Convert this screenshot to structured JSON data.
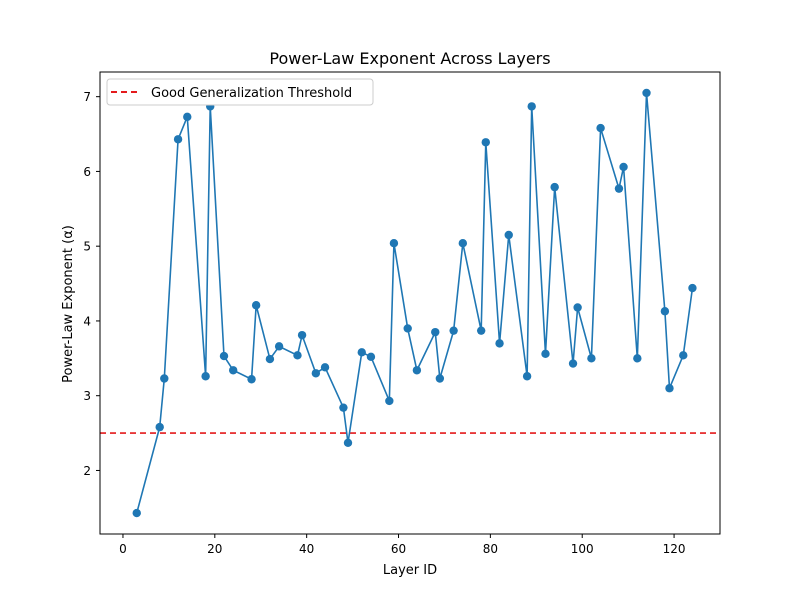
{
  "chart_data": {
    "type": "line",
    "title": "Power-Law Exponent Across Layers",
    "xlabel": "Layer ID",
    "ylabel": "Power-Law Exponent (α)",
    "xlim": [
      -5,
      130
    ],
    "ylim": [
      1.15,
      7.33
    ],
    "xticks": [
      0,
      20,
      40,
      60,
      80,
      100,
      120
    ],
    "yticks": [
      2,
      3,
      4,
      5,
      6,
      7
    ],
    "grid": false,
    "legend": {
      "placement": "top-left",
      "entries": [
        "Good Generalization Threshold"
      ]
    },
    "series": [
      {
        "color": "#1f77b4",
        "marker": "circle",
        "points": [
          [
            3,
            1.43
          ],
          [
            8,
            2.58
          ],
          [
            9,
            3.23
          ],
          [
            12,
            6.43
          ],
          [
            14,
            6.73
          ],
          [
            18,
            3.26
          ],
          [
            19,
            6.87
          ],
          [
            22,
            3.53
          ],
          [
            24,
            3.34
          ],
          [
            28,
            3.22
          ],
          [
            29,
            4.21
          ],
          [
            32,
            3.49
          ],
          [
            34,
            3.66
          ],
          [
            38,
            3.54
          ],
          [
            39,
            3.81
          ],
          [
            42,
            3.3
          ],
          [
            44,
            3.38
          ],
          [
            48,
            2.84
          ],
          [
            49,
            2.37
          ],
          [
            52,
            3.58
          ],
          [
            54,
            3.52
          ],
          [
            58,
            2.93
          ],
          [
            59,
            5.04
          ],
          [
            62,
            3.9
          ],
          [
            64,
            3.34
          ],
          [
            68,
            3.85
          ],
          [
            69,
            3.23
          ],
          [
            72,
            3.87
          ],
          [
            74,
            5.04
          ],
          [
            78,
            3.87
          ],
          [
            79,
            6.39
          ],
          [
            82,
            3.7
          ],
          [
            84,
            5.15
          ],
          [
            88,
            3.26
          ],
          [
            89,
            6.87
          ],
          [
            92,
            3.56
          ],
          [
            94,
            5.79
          ],
          [
            98,
            3.43
          ],
          [
            99,
            4.18
          ],
          [
            102,
            3.5
          ],
          [
            104,
            6.58
          ],
          [
            108,
            5.77
          ],
          [
            109,
            6.06
          ],
          [
            112,
            3.5
          ],
          [
            114,
            7.05
          ],
          [
            118,
            4.13
          ],
          [
            119,
            3.1
          ],
          [
            122,
            3.54
          ],
          [
            124,
            4.44
          ]
        ]
      }
    ],
    "threshold": {
      "name": "Good Generalization Threshold",
      "y": 2.5,
      "color": "#e41a1c",
      "style": "dashed"
    }
  }
}
